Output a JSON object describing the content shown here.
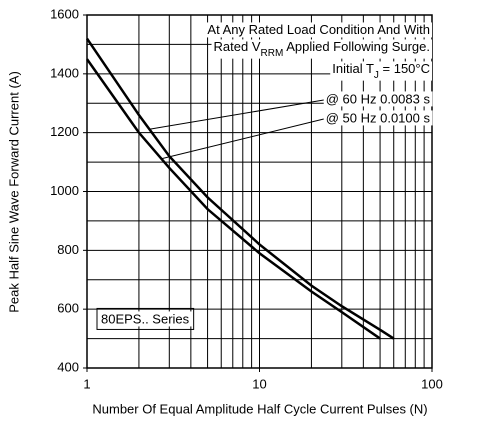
{
  "chart_data": {
    "type": "line",
    "xlabel": "Number Of Equal Amplitude Half Cycle Current Pulses (N)",
    "ylabel": "Peak Half Sine Wave Forward Current (A)",
    "xscale": "log",
    "xlim": [
      1,
      100
    ],
    "xticks": [
      1,
      10,
      100
    ],
    "xgrid": [
      1,
      2,
      3,
      4,
      5,
      6,
      7,
      8,
      9,
      10,
      20,
      30,
      40,
      50,
      60,
      70,
      80,
      90,
      100
    ],
    "ylim": [
      400,
      1600
    ],
    "yticks": [
      400,
      600,
      800,
      1000,
      1200,
      1400,
      1600
    ],
    "ygrid": [
      400,
      500,
      600,
      700,
      800,
      900,
      1000,
      1100,
      1200,
      1300,
      1400,
      1500,
      1600
    ],
    "annotations": [
      [
        "At Any Rated Load Condition And With"
      ],
      [
        "Rated V",
        "RRM",
        " Applied Following Surge."
      ],
      [
        "Initial T",
        "J",
        " = 150°C"
      ]
    ],
    "device_label": "80EPS.. Series",
    "series": [
      {
        "name": "@ 60 Hz 0.0083 s",
        "color": "#000000",
        "x": [
          1,
          2,
          3,
          5,
          10,
          20,
          30,
          50,
          60
        ],
        "values": [
          1520,
          1260,
          1120,
          980,
          820,
          680,
          610,
          530,
          500
        ]
      },
      {
        "name": "@ 50 Hz 0.0100 s",
        "color": "#000000",
        "x": [
          1,
          2,
          3,
          5,
          10,
          20,
          30,
          50
        ],
        "values": [
          1450,
          1200,
          1080,
          940,
          790,
          660,
          590,
          500
        ]
      }
    ]
  }
}
